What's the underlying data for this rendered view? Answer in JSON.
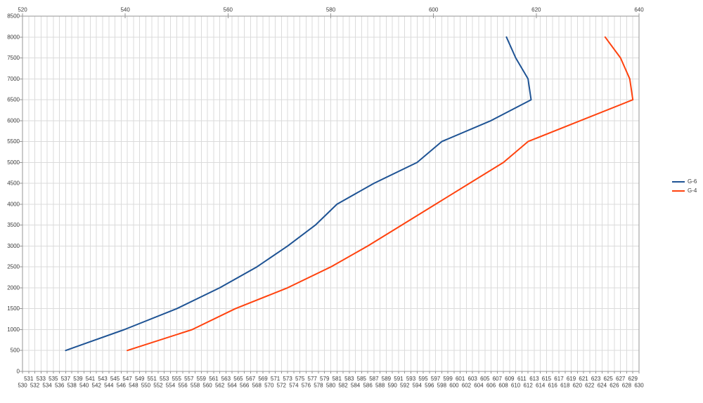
{
  "chart_data": {
    "type": "line",
    "title": "",
    "xlabel": "",
    "ylabel": "",
    "grid": {
      "vertical_every_x_unit": 1,
      "horizontal_every_y_units": 500
    },
    "colors": {
      "gridline": "#dbdbdb",
      "axis_line": "#969696",
      "tick_label": "#3a3a3a",
      "background": "#ffffff"
    },
    "x_axis": {
      "primary": {
        "position": "bottom",
        "min": 530,
        "max": 630,
        "stagger_rows": 2,
        "row1_labels": [
          531,
          533,
          535,
          537,
          539,
          541,
          543,
          545,
          547,
          549,
          551,
          553,
          555,
          557,
          559,
          561,
          563,
          565,
          567,
          569,
          571,
          573,
          575,
          577,
          579,
          581,
          583,
          585,
          587,
          589,
          591,
          593,
          595,
          597,
          599,
          601,
          603,
          605,
          607,
          609,
          611,
          613,
          615,
          617,
          619,
          621,
          623,
          625,
          627,
          629
        ],
        "row2_labels": [
          530,
          532,
          534,
          536,
          538,
          540,
          542,
          544,
          546,
          548,
          550,
          552,
          554,
          556,
          558,
          560,
          562,
          564,
          566,
          568,
          570,
          572,
          574,
          576,
          578,
          580,
          582,
          584,
          586,
          588,
          590,
          592,
          594,
          596,
          598,
          600,
          602,
          604,
          606,
          608,
          610,
          612,
          614,
          616,
          618,
          620,
          622,
          624,
          626,
          628,
          630
        ]
      },
      "secondary": {
        "position": "top",
        "min": 520,
        "max": 640,
        "tick_labels": [
          520,
          540,
          560,
          580,
          600,
          620,
          640
        ]
      }
    },
    "y_axis": {
      "min": 0,
      "max": 8500,
      "tick_step": 500,
      "tick_labels": [
        0,
        500,
        1000,
        1500,
        2000,
        2500,
        3000,
        3500,
        4000,
        4500,
        5000,
        5500,
        6000,
        6500,
        7000,
        7500,
        8000,
        8500
      ]
    },
    "legend": {
      "position": "right"
    },
    "series": [
      {
        "name": "G-6",
        "color": "#1e5394",
        "points": [
          [
            537,
            500
          ],
          [
            546.5,
            1000
          ],
          [
            555,
            1500
          ],
          [
            562,
            2000
          ],
          [
            568,
            2500
          ],
          [
            573,
            3000
          ],
          [
            577.5,
            3500
          ],
          [
            581,
            4000
          ],
          [
            587,
            4500
          ],
          [
            594,
            5000
          ],
          [
            598,
            5500
          ],
          [
            606,
            6000
          ],
          [
            612.5,
            6500
          ],
          [
            612,
            7000
          ],
          [
            610,
            7500
          ],
          [
            608.5,
            8000
          ]
        ]
      },
      {
        "name": "G-4",
        "color": "#ff420e",
        "points": [
          [
            547,
            500
          ],
          [
            557.5,
            1000
          ],
          [
            564.5,
            1500
          ],
          [
            573,
            2000
          ],
          [
            580,
            2500
          ],
          [
            586,
            3000
          ],
          [
            591.5,
            3500
          ],
          [
            597,
            4000
          ],
          [
            602.5,
            4500
          ],
          [
            608,
            5000
          ],
          [
            612,
            5500
          ],
          [
            620.5,
            6000
          ],
          [
            629,
            6500
          ],
          [
            628.5,
            7000
          ],
          [
            627,
            7500
          ],
          [
            624.5,
            8000
          ]
        ]
      }
    ]
  }
}
